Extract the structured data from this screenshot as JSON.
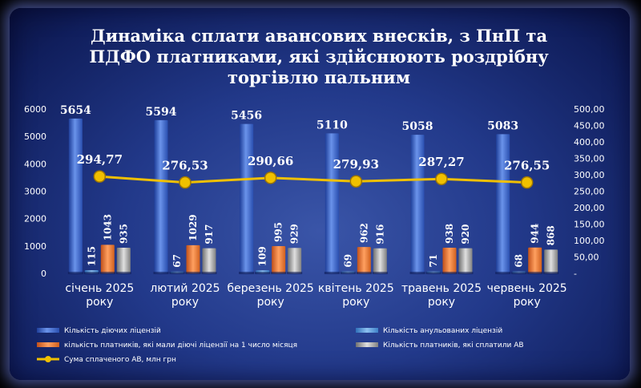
{
  "chart_data": {
    "type": "bar",
    "title_lines": [
      "Динаміка сплати авансових внесків, з ПнП та",
      "ПДФО платниками, які здійснюють роздрібну",
      "торгівлю пальним"
    ],
    "categories": [
      [
        "січень 2025",
        "року"
      ],
      [
        "лютий 2025",
        "року"
      ],
      [
        "березень 2025",
        "року"
      ],
      [
        "квітень 2025",
        "року"
      ],
      [
        "травень 2025",
        "року"
      ],
      [
        "червень 2025",
        "року"
      ]
    ],
    "ylim_left": [
      0,
      6000
    ],
    "yticks_left": [
      "0",
      "1000",
      "2000",
      "3000",
      "4000",
      "5000",
      "6000"
    ],
    "ylim_right": [
      0,
      500
    ],
    "yticks_right": [
      "-",
      "50,00",
      "100,00",
      "150,00",
      "200,00",
      "250,00",
      "300,00",
      "350,00",
      "400,00",
      "450,00",
      "500,00"
    ],
    "legend_position": "bottom",
    "series": [
      {
        "name": "Кількість діючих ліцензій",
        "type": "bar",
        "axis": "left",
        "color": "#3f6fd1",
        "values": [
          5654,
          5594,
          5456,
          5110,
          5058,
          5083
        ],
        "labels": [
          "5654",
          "5594",
          "5456",
          "5110",
          "5058",
          "5083"
        ]
      },
      {
        "name": "Кількість анульованих ліцензій",
        "type": "bar",
        "axis": "left",
        "color": "#5b9bd5",
        "values": [
          115,
          67,
          109,
          69,
          71,
          68
        ],
        "labels": [
          "115",
          "67",
          "109",
          "69",
          "71",
          "68"
        ]
      },
      {
        "name": "кількість платників, які мали діючі ліцензії на 1 число місяця",
        "type": "bar",
        "axis": "left",
        "color": "#ed7d31",
        "values": [
          1043,
          1029,
          995,
          962,
          938,
          944
        ],
        "labels": [
          "1043",
          "1029",
          "995",
          "962",
          "938",
          "944"
        ]
      },
      {
        "name": "Кількість платників, які сплатили АВ",
        "type": "bar",
        "axis": "left",
        "color": "#a5a5a5",
        "values": [
          935,
          917,
          929,
          916,
          920,
          868
        ],
        "labels": [
          "935",
          "917",
          "929",
          "916",
          "920",
          "868"
        ]
      },
      {
        "name": "Сума сплаченого АВ, млн грн",
        "type": "line",
        "axis": "right",
        "color": "#f0c000",
        "values": [
          294.77,
          276.53,
          290.66,
          279.93,
          287.27,
          276.55
        ],
        "labels": [
          "294,77",
          "276,53",
          "290,66",
          "279,93",
          "287,27",
          "276,55"
        ]
      }
    ]
  }
}
